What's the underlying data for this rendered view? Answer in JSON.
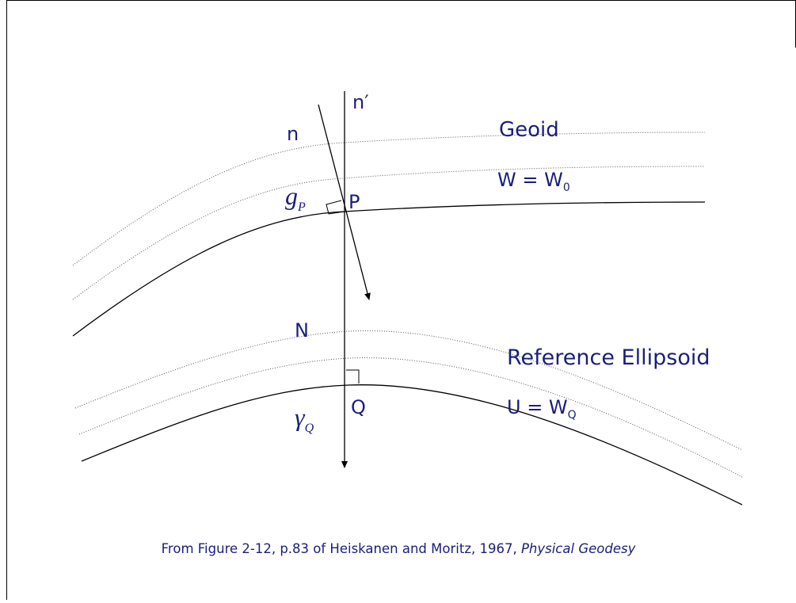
{
  "labels": [
    {
      "text": "n′"
    },
    {
      "text": "n"
    },
    {
      "text": "Geoid"
    },
    {
      "text": "W = W",
      "sub": "0"
    },
    {
      "text": "g",
      "sub": "P"
    },
    {
      "text": "P"
    },
    {
      "text": "N"
    },
    {
      "text": "Reference Ellipsoid"
    },
    {
      "text": "Q"
    },
    {
      "text": "U = W",
      "sub": "Q"
    },
    {
      "text": "γ",
      "sub": "Q"
    }
  ],
  "caption": {
    "text": "From Figure 2-12, p.83 of Heiskanen and Moritz, 1967, ",
    "source": "Physical Geodesy"
  }
}
